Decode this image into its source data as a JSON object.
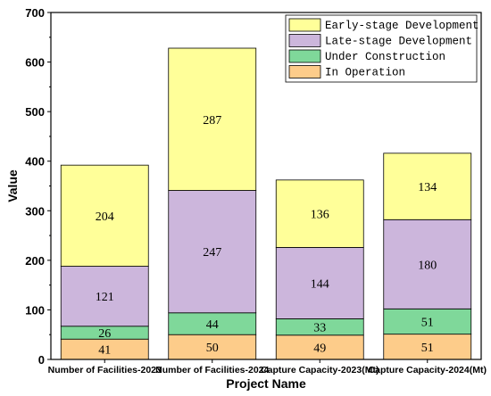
{
  "chart_data": {
    "type": "bar",
    "stacked": true,
    "title": "",
    "xlabel": "Project Name",
    "ylabel": "Value",
    "ylim": [
      0,
      700
    ],
    "yticks": [
      0,
      100,
      200,
      300,
      400,
      500,
      600,
      700
    ],
    "categories": [
      "Number of Facilities-2023",
      "Number of Facilities-2024",
      "Capture Capacity-2023(Mt)",
      "Capture Capacity-2024(Mt)"
    ],
    "series": [
      {
        "name": "In Operation",
        "values": [
          41,
          50,
          49,
          51
        ],
        "color": "#fdcc8a"
      },
      {
        "name": "Under Construction",
        "values": [
          26,
          44,
          33,
          51
        ],
        "color": "#7fd89a"
      },
      {
        "name": "Late-stage Development",
        "values": [
          121,
          247,
          144,
          180
        ],
        "color": "#ccb6dc"
      },
      {
        "name": "Early-stage Development",
        "values": [
          204,
          287,
          136,
          134
        ],
        "color": "#ffff99"
      }
    ],
    "legend": {
      "position": "top-right",
      "order": [
        "Early-stage Development",
        "Late-stage Development",
        "Under Construction",
        "In Operation"
      ]
    },
    "grid": false
  }
}
